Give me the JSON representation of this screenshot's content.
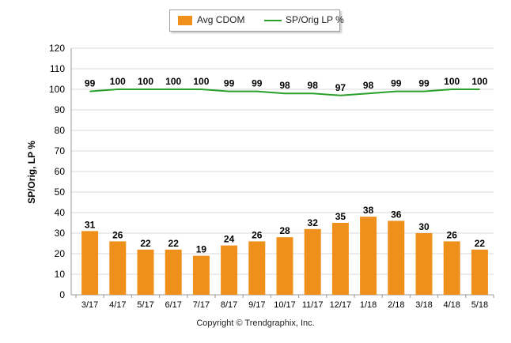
{
  "chart_data": {
    "type": "bar",
    "categories": [
      "3/17",
      "4/17",
      "5/17",
      "6/17",
      "7/17",
      "8/17",
      "9/17",
      "10/17",
      "11/17",
      "12/17",
      "1/18",
      "2/18",
      "3/18",
      "4/18",
      "5/18"
    ],
    "series": [
      {
        "name": "Avg CDOM",
        "type": "bar",
        "color": "#f0901c",
        "values": [
          31,
          26,
          22,
          22,
          19,
          24,
          26,
          28,
          32,
          35,
          38,
          36,
          30,
          26,
          22
        ]
      },
      {
        "name": "SP/Orig LP %",
        "type": "line",
        "color": "#2aa02a",
        "values": [
          99,
          100,
          100,
          100,
          100,
          99,
          99,
          98,
          98,
          97,
          98,
          99,
          99,
          100,
          100
        ]
      }
    ],
    "ylabel": "SP/Orig, LP %",
    "ylim": [
      0,
      120
    ],
    "yticks": [
      0,
      10,
      20,
      30,
      40,
      50,
      60,
      70,
      80,
      90,
      100,
      110,
      120
    ],
    "grid": true,
    "legend_position": "top-center"
  },
  "footer": {
    "copyright": "Copyright © Trendgraphix, Inc."
  }
}
